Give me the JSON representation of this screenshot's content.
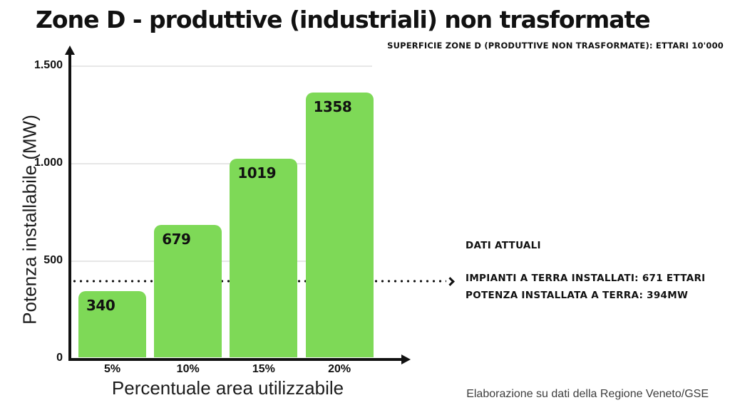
{
  "title": "Zone D - produttive (industriali) non trasformate",
  "subtitle": "SUPERFICIE ZONE D (PRODUTTIVE NON TRASFORMATE): ETTARI 10'000",
  "chart_data": {
    "type": "bar",
    "categories": [
      "5%",
      "10%",
      "15%",
      "20%"
    ],
    "values": [
      340,
      679,
      1019,
      1358
    ],
    "title": "Zone D - produttive (industriali) non trasformate",
    "xlabel": "Percentuale area utilizzabile",
    "ylabel": "Potenza installabile (MW)",
    "ylim": [
      0,
      1500
    ],
    "yticks": [
      0,
      500,
      1000,
      1500
    ],
    "ytick_labels": [
      "0",
      "500",
      "1.000",
      "1.500"
    ],
    "bar_color": "#7ED957",
    "grid": true,
    "legend": "none",
    "reference_line": {
      "value": 394,
      "style": "dotted-arrow"
    }
  },
  "annotations": {
    "heading": "DATI ATTUALI",
    "line1": "IMPIANTI A TERRA INSTALLATI: 671 ETTARI",
    "line2": "POTENZA INSTALLATA A TERRA: 394MW"
  },
  "footer": "Elaborazione su dati della Regione Veneto/GSE",
  "colors": {
    "bar": "#7ED957",
    "axis": "#111111",
    "grid": "#e7e7e7",
    "footer_text": "#3d3d3d"
  }
}
